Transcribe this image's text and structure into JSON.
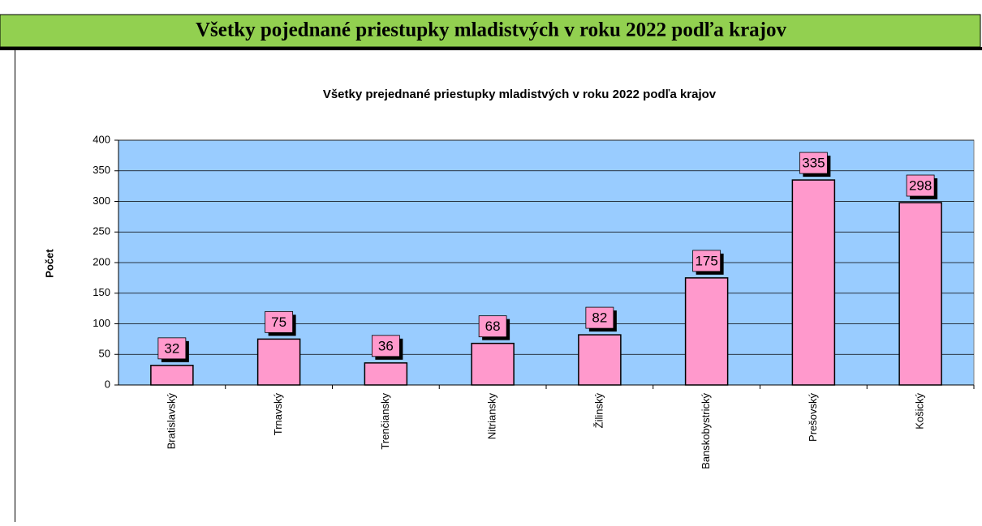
{
  "header": {
    "title": "Všetky pojednané priestupky mladistvých v roku 2022 podľa krajov"
  },
  "chart_data": {
    "type": "bar",
    "title": "Všetky prejednané priestupky mladistvých v roku 2022 podľa krajov",
    "y_label": "Počet",
    "categories": [
      "Bratislavský",
      "Trnavský",
      "Trenčiansky",
      "Nitriansky",
      "Žilinský",
      "Banskobystrický",
      "Prešovský",
      "Košický"
    ],
    "values": [
      32,
      75,
      36,
      68,
      82,
      175,
      335,
      298
    ],
    "color": "#ff99cc",
    "background": "#99ccff",
    "label_color": "#ff99cc",
    "ylim": [
      0,
      400
    ],
    "yticks": [
      0,
      50,
      100,
      150,
      200,
      250,
      300,
      350,
      400
    ],
    "grid": true
  }
}
